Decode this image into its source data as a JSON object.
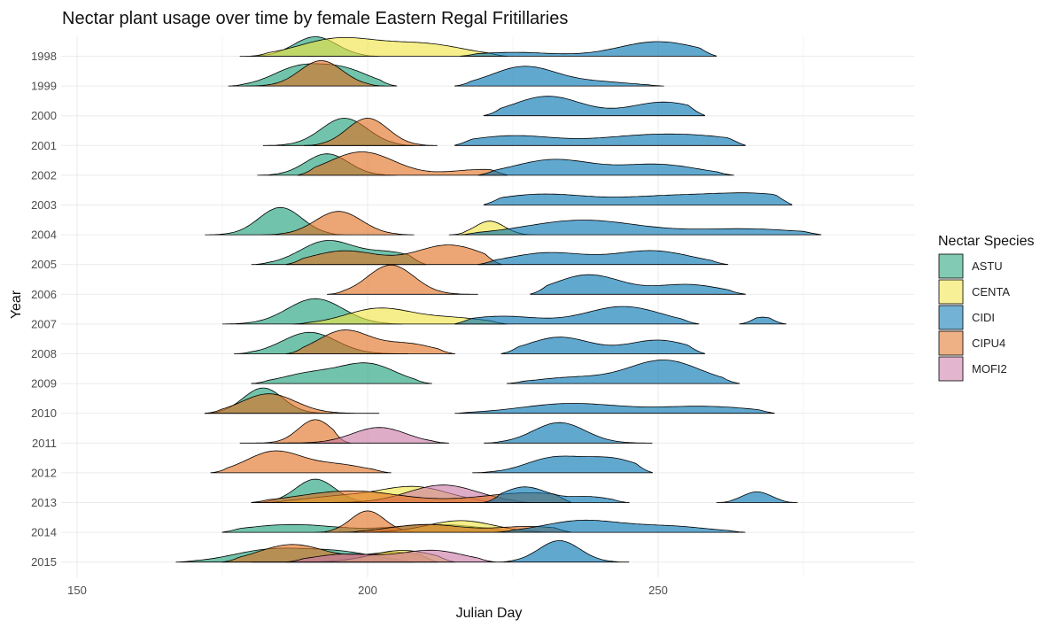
{
  "chart_data": {
    "type": "ridgeline",
    "title": "Nectar plant usage over time by female Eastern Regal Fritillaries",
    "xlabel": "Julian Day",
    "ylabel": "Year",
    "xlim": [
      150,
      285
    ],
    "x_ticks": [
      150,
      200,
      250
    ],
    "grid": true,
    "legend": {
      "title": "Nectar Species",
      "position": "right",
      "entries": [
        "ASTU",
        "CENTA",
        "CIDI",
        "CIPU4",
        "MOFI2"
      ]
    },
    "colors": {
      "ASTU": "#1b9e77",
      "CENTA": "#f0e442",
      "CIDI": "#0072b2",
      "CIPU4": "#e07020",
      "MOFI2": "#cc79a7"
    },
    "years": [
      "1998",
      "1999",
      "2000",
      "2001",
      "2002",
      "2003",
      "2004",
      "2005",
      "2006",
      "2007",
      "2008",
      "2009",
      "2010",
      "2011",
      "2012",
      "2013",
      "2014",
      "2015"
    ],
    "series": [
      {
        "year": "1998",
        "species": "ASTU",
        "range": [
          178,
          202
        ],
        "peaks": [
          [
            191,
            1.0
          ]
        ]
      },
      {
        "year": "1998",
        "species": "CENTA",
        "range": [
          180,
          224
        ],
        "peaks": [
          [
            195,
            0.9
          ],
          [
            210,
            0.6
          ]
        ]
      },
      {
        "year": "1998",
        "species": "CIDI",
        "range": [
          216,
          260
        ],
        "peaks": [
          [
            225,
            0.2
          ],
          [
            250,
            0.75
          ]
        ]
      },
      {
        "year": "1999",
        "species": "ASTU",
        "range": [
          176,
          205
        ],
        "peaks": [
          [
            188,
            0.9
          ],
          [
            196,
            0.8
          ]
        ]
      },
      {
        "year": "1999",
        "species": "CIPU4",
        "range": [
          179,
          203
        ],
        "peaks": [
          [
            192,
            1.3
          ]
        ]
      },
      {
        "year": "1999",
        "species": "CIDI",
        "range": [
          215,
          251
        ],
        "peaks": [
          [
            227,
            1.0
          ],
          [
            240,
            0.2
          ]
        ]
      },
      {
        "year": "2000",
        "species": "CIDI",
        "range": [
          220,
          258
        ],
        "peaks": [
          [
            231,
            1.0
          ],
          [
            251,
            0.7
          ]
        ]
      },
      {
        "year": "2001",
        "species": "ASTU",
        "range": [
          182,
          208
        ],
        "peaks": [
          [
            196,
            1.4
          ]
        ]
      },
      {
        "year": "2001",
        "species": "CIPU4",
        "range": [
          189,
          212
        ],
        "peaks": [
          [
            200,
            1.4
          ]
        ]
      },
      {
        "year": "2001",
        "species": "CIDI",
        "range": [
          215,
          265
        ],
        "peaks": [
          [
            225,
            0.5
          ],
          [
            246,
            0.4
          ],
          [
            258,
            0.4
          ]
        ]
      },
      {
        "year": "2002",
        "species": "ASTU",
        "range": [
          181,
          205
        ],
        "peaks": [
          [
            193,
            1.1
          ]
        ]
      },
      {
        "year": "2002",
        "species": "CIPU4",
        "range": [
          188,
          224
        ],
        "peaks": [
          [
            199,
            1.2
          ],
          [
            220,
            0.3
          ]
        ]
      },
      {
        "year": "2002",
        "species": "CIDI",
        "range": [
          219,
          263
        ],
        "peaks": [
          [
            232,
            0.8
          ],
          [
            250,
            0.55
          ]
        ]
      },
      {
        "year": "2003",
        "species": "CIDI",
        "range": [
          220,
          273
        ],
        "peaks": [
          [
            230,
            0.55
          ],
          [
            251,
            0.4
          ],
          [
            267,
            0.55
          ]
        ]
      },
      {
        "year": "2004",
        "species": "ASTU",
        "range": [
          172,
          196
        ],
        "peaks": [
          [
            185,
            1.4
          ]
        ]
      },
      {
        "year": "2004",
        "species": "CIPU4",
        "range": [
          182,
          208
        ],
        "peaks": [
          [
            195,
            1.2
          ]
        ]
      },
      {
        "year": "2004",
        "species": "CENTA",
        "range": [
          214,
          229
        ],
        "peaks": [
          [
            221,
            0.7
          ]
        ]
      },
      {
        "year": "2004",
        "species": "CIDI",
        "range": [
          216,
          278
        ],
        "peaks": [
          [
            237,
            0.75
          ],
          [
            265,
            0.3
          ]
        ]
      },
      {
        "year": "2005",
        "species": "ASTU",
        "range": [
          180,
          210
        ],
        "peaks": [
          [
            193,
            1.2
          ],
          [
            204,
            0.6
          ]
        ]
      },
      {
        "year": "2005",
        "species": "CIPU4",
        "range": [
          186,
          223
        ],
        "peaks": [
          [
            196,
            0.7
          ],
          [
            214,
            1.0
          ]
        ]
      },
      {
        "year": "2005",
        "species": "CIDI",
        "range": [
          219,
          262
        ],
        "peaks": [
          [
            231,
            0.6
          ],
          [
            249,
            0.7
          ]
        ]
      },
      {
        "year": "2006",
        "species": "CIPU4",
        "range": [
          193,
          219
        ],
        "peaks": [
          [
            204,
            1.5
          ]
        ]
      },
      {
        "year": "2006",
        "species": "CIDI",
        "range": [
          228,
          265
        ],
        "peaks": [
          [
            238,
            1.0
          ],
          [
            255,
            0.5
          ]
        ]
      },
      {
        "year": "2007",
        "species": "ASTU",
        "range": [
          175,
          206
        ],
        "peaks": [
          [
            191,
            1.3
          ]
        ]
      },
      {
        "year": "2007",
        "species": "CENTA",
        "range": [
          187,
          224
        ],
        "peaks": [
          [
            202,
            0.8
          ],
          [
            215,
            0.3
          ]
        ]
      },
      {
        "year": "2007",
        "species": "CIDI",
        "range": [
          215,
          257
        ],
        "peaks": [
          [
            223,
            0.4
          ],
          [
            244,
            0.9
          ]
        ]
      },
      {
        "year": "2007",
        "species": "CIDI",
        "range": [
          264,
          272
        ],
        "peaks": [
          [
            268,
            0.35
          ]
        ]
      },
      {
        "year": "2008",
        "species": "ASTU",
        "range": [
          177,
          207
        ],
        "peaks": [
          [
            190,
            1.1
          ]
        ]
      },
      {
        "year": "2008",
        "species": "CIPU4",
        "range": [
          186,
          215
        ],
        "peaks": [
          [
            196,
            1.2
          ],
          [
            207,
            0.5
          ]
        ]
      },
      {
        "year": "2008",
        "species": "CIDI",
        "range": [
          223,
          258
        ],
        "peaks": [
          [
            233,
            0.85
          ],
          [
            250,
            0.7
          ]
        ]
      },
      {
        "year": "2009",
        "species": "ASTU",
        "range": [
          180,
          211
        ],
        "peaks": [
          [
            190,
            0.5
          ],
          [
            200,
            1.0
          ]
        ]
      },
      {
        "year": "2009",
        "species": "CIDI",
        "range": [
          224,
          264
        ],
        "peaks": [
          [
            235,
            0.3
          ],
          [
            251,
            1.2
          ]
        ]
      },
      {
        "year": "2010",
        "species": "ASTU",
        "range": [
          172,
          194
        ],
        "peaks": [
          [
            182,
            1.3
          ]
        ]
      },
      {
        "year": "2010",
        "species": "CIPU4",
        "range": [
          172,
          202
        ],
        "peaks": [
          [
            183,
            1.0
          ]
        ]
      },
      {
        "year": "2010",
        "species": "CIDI",
        "range": [
          215,
          270
        ],
        "peaks": [
          [
            235,
            0.5
          ],
          [
            258,
            0.35
          ]
        ]
      },
      {
        "year": "2011",
        "species": "CIPU4",
        "range": [
          178,
          197
        ],
        "peaks": [
          [
            191,
            1.2
          ]
        ]
      },
      {
        "year": "2011",
        "species": "MOFI2",
        "range": [
          184,
          214
        ],
        "peaks": [
          [
            202,
            0.8
          ]
        ]
      },
      {
        "year": "2011",
        "species": "CIDI",
        "range": [
          220,
          249
        ],
        "peaks": [
          [
            233,
            1.05
          ]
        ]
      },
      {
        "year": "2012",
        "species": "CIPU4",
        "range": [
          173,
          204
        ],
        "peaks": [
          [
            184,
            1.1
          ],
          [
            195,
            0.4
          ]
        ]
      },
      {
        "year": "2012",
        "species": "CIDI",
        "range": [
          218,
          249
        ],
        "peaks": [
          [
            232,
            0.75
          ],
          [
            242,
            0.7
          ]
        ]
      },
      {
        "year": "2013",
        "species": "ASTU",
        "range": [
          180,
          202
        ],
        "peaks": [
          [
            191,
            1.2
          ]
        ]
      },
      {
        "year": "2013",
        "species": "CENTA",
        "range": [
          183,
          222
        ],
        "peaks": [
          [
            195,
            0.3
          ],
          [
            208,
            0.8
          ]
        ]
      },
      {
        "year": "2013",
        "species": "MOFI2",
        "range": [
          189,
          228
        ],
        "peaks": [
          [
            213,
            0.9
          ]
        ]
      },
      {
        "year": "2013",
        "species": "CIPU4",
        "range": [
          180,
          235
        ],
        "peaks": [
          [
            197,
            0.6
          ],
          [
            228,
            0.5
          ]
        ]
      },
      {
        "year": "2013",
        "species": "CIDI",
        "range": [
          220,
          245
        ],
        "peaks": [
          [
            227,
            0.8
          ],
          [
            238,
            0.3
          ]
        ]
      },
      {
        "year": "2013",
        "species": "CIDI",
        "range": [
          260,
          274
        ],
        "peaks": [
          [
            267,
            0.55
          ]
        ]
      },
      {
        "year": "2014",
        "species": "ASTU",
        "range": [
          175,
          225
        ],
        "peaks": [
          [
            187,
            0.4
          ],
          [
            212,
            0.4
          ]
        ]
      },
      {
        "year": "2014",
        "species": "CIPU4",
        "range": [
          191,
          210
        ],
        "peaks": [
          [
            200,
            1.1
          ]
        ]
      },
      {
        "year": "2014",
        "species": "CENTA",
        "range": [
          195,
          232
        ],
        "peaks": [
          [
            216,
            0.6
          ]
        ]
      },
      {
        "year": "2014",
        "species": "CIPU4",
        "range": [
          196,
          235
        ],
        "peaks": [
          [
            210,
            0.4
          ],
          [
            228,
            0.3
          ]
        ]
      },
      {
        "year": "2014",
        "species": "CIDI",
        "range": [
          222,
          265
        ],
        "peaks": [
          [
            237,
            0.6
          ],
          [
            252,
            0.3
          ]
        ]
      },
      {
        "year": "2015",
        "species": "ASTU",
        "range": [
          167,
          208
        ],
        "peaks": [
          [
            183,
            0.6
          ],
          [
            195,
            0.5
          ]
        ]
      },
      {
        "year": "2015",
        "species": "CIPU4",
        "range": [
          175,
          212
        ],
        "peaks": [
          [
            187,
            0.9
          ],
          [
            205,
            0.5
          ]
        ]
      },
      {
        "year": "2015",
        "species": "CENTA",
        "range": [
          180,
          215
        ],
        "peaks": [
          [
            206,
            0.6
          ]
        ]
      },
      {
        "year": "2015",
        "species": "MOFI2",
        "range": [
          186,
          222
        ],
        "peaks": [
          [
            196,
            0.4
          ],
          [
            211,
            0.6
          ]
        ]
      },
      {
        "year": "2015",
        "species": "CIDI",
        "range": [
          222,
          245
        ],
        "peaks": [
          [
            233,
            1.1
          ]
        ]
      }
    ]
  }
}
